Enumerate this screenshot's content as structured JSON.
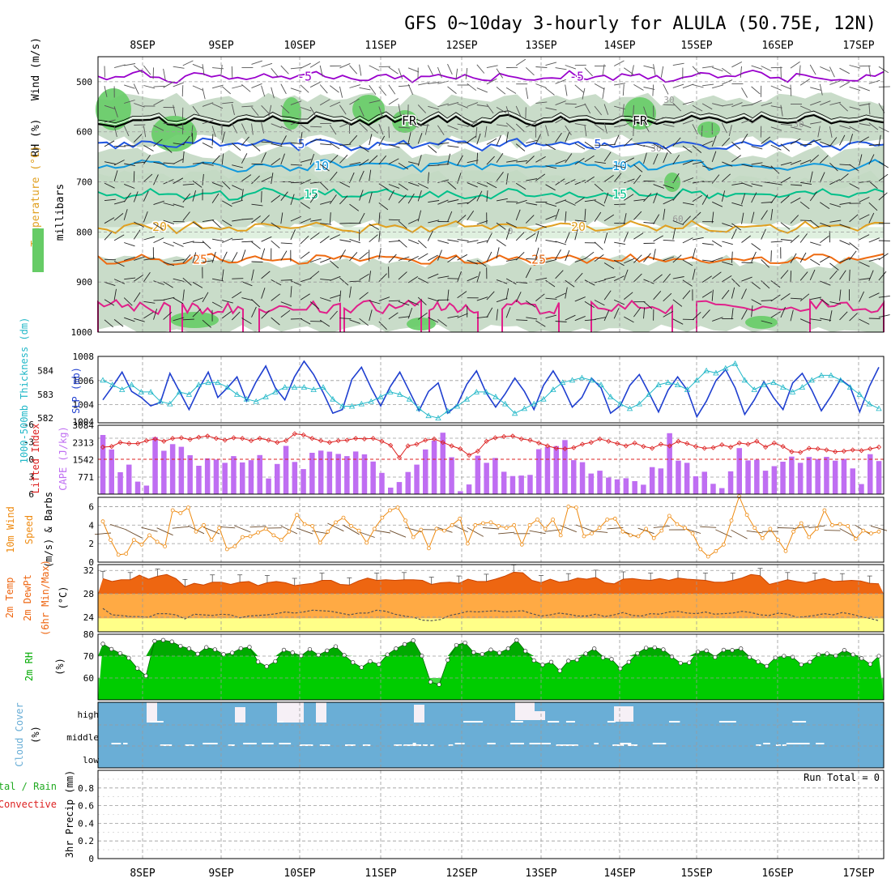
{
  "title": "GFS 0~10day 3-hourly for ALULA (50.75E, 12N)",
  "dates": [
    "8SEP",
    "9SEP",
    "10SEP",
    "11SEP",
    "12SEP",
    "13SEP",
    "14SEP",
    "15SEP",
    "16SEP",
    "17SEP"
  ],
  "colors": {
    "rh_light": "#dff0df",
    "rh_mid": "#c0d6c0",
    "rh_green": "#66cc66",
    "t_purple": "#9900cc",
    "t_black": "#000000",
    "t_blue": "#1f55e0",
    "t_sky": "#1199dd",
    "t_teal": "#00c08a",
    "t_gold": "#e0a020",
    "t_orange": "#ee6a10",
    "t_magenta": "#e0208a",
    "slp": "#1f3fd0",
    "thick": "#22b8c8",
    "cape": "#bf6ef2",
    "li": "#dd2222",
    "wind": "#ee8a10",
    "temp": "#ee6611",
    "temp_mid": "#ffaa44",
    "temp_low": "#ffff88",
    "rh2": "#00cc00",
    "rh2_dark": "#00aa00",
    "cloud": "#6aaed6",
    "precip_label": "#22aa22"
  },
  "chart_data": [
    {
      "type": "heatmap",
      "name": "upper-air cross section",
      "ylabel": "millibars",
      "y_ticks": [
        "500",
        "600",
        "700",
        "800",
        "900",
        "1000"
      ],
      "ylim": [
        450,
        1000
      ],
      "side_labels": {
        "wind": "Wind (m/s)",
        "temperature": "Temperature (°C)",
        "rh": "RH (%)"
      },
      "isotherms": [
        {
          "value": -5,
          "level": 490,
          "label": "-5"
        },
        {
          "value": 0,
          "level": 578,
          "label": "FR"
        },
        {
          "value": 5,
          "level": 625,
          "label": "5"
        },
        {
          "value": 10,
          "level": 668,
          "label": "10"
        },
        {
          "value": 15,
          "level": 725,
          "label": "15"
        },
        {
          "value": 20,
          "level": 790,
          "label": "20"
        },
        {
          "value": 25,
          "level": 855,
          "label": "25"
        }
      ],
      "rh_labels": [
        "30",
        "60",
        "0"
      ]
    },
    {
      "type": "line",
      "name": "slp-thickness",
      "left_label": "1000-500mb Thickness (dm)",
      "right_label": "SLP (mb)",
      "left_ticks": [
        "584",
        "583",
        "582"
      ],
      "right_ticks": [
        "1008",
        "1006",
        "1004",
        "1004"
      ],
      "slp_range": [
        1002.5,
        1008
      ],
      "slp": [
        1004.4,
        1005.5,
        1006.7,
        1005.1,
        1004.6,
        1003.9,
        1004.2,
        1006.6,
        1005.1,
        1003.6,
        1005.3,
        1006.7,
        1004.6,
        1005.4,
        1006.3,
        1004.3,
        1005.9,
        1007.2,
        1005.4,
        1004.4,
        1006.3,
        1007.6,
        1006.5,
        1005.0,
        1003.3,
        1003.6,
        1006.1,
        1007.1,
        1005.4,
        1003.9,
        1005.5,
        1006.7,
        1005.1,
        1003.5,
        1005.1,
        1005.8,
        1003.3,
        1004.0,
        1005.7,
        1006.8,
        1005.0,
        1003.8,
        1004.9,
        1006.2,
        1005.1,
        1003.6,
        1005.6,
        1006.8,
        1005.5,
        1003.8,
        1004.6,
        1006.2,
        1005.4,
        1003.3,
        1003.9,
        1005.6,
        1006.5,
        1005.0,
        1003.4,
        1005.2,
        1006.3,
        1005.2,
        1003.0,
        1004.3,
        1006.0,
        1006.9,
        1005.4,
        1003.2,
        1004.4,
        1005.9,
        1004.6,
        1003.6,
        1005.8,
        1006.6,
        1005.2,
        1003.5,
        1004.7,
        1006.1,
        1005.5,
        1003.4,
        1005.5,
        1007.1
      ],
      "thick_range": [
        581.8,
        584.6
      ],
      "thickness": [
        583.6,
        583.4,
        583.2,
        583.4,
        583.1,
        583.1,
        582.7,
        582.6,
        583.1,
        583.0,
        583.4,
        583.5,
        583.5,
        583.3,
        583.0,
        582.8,
        582.7,
        582.9,
        583.1,
        583.3,
        583.3,
        583.3,
        583.2,
        583.3,
        582.8,
        582.5,
        582.5,
        582.6,
        582.7,
        582.9,
        583.1,
        583.0,
        582.8,
        582.4,
        582.1,
        582.0,
        582.3,
        582.5,
        582.8,
        583.1,
        583.1,
        582.9,
        582.6,
        582.2,
        582.4,
        582.6,
        582.8,
        583.2,
        583.5,
        583.6,
        583.7,
        583.6,
        583.4,
        582.9,
        582.6,
        582.4,
        582.6,
        583.0,
        583.4,
        583.5,
        583.4,
        583.2,
        583.6,
        584.0,
        583.9,
        584.1,
        584.3,
        583.6,
        583.2,
        583.4,
        583.5,
        583.3,
        583.1,
        583.3,
        583.6,
        583.8,
        583.8,
        583.6,
        583.3,
        583.0,
        582.6,
        582.4
      ]
    },
    {
      "type": "bar",
      "name": "cape-lifted-index",
      "left_label": "Lifted Index",
      "right_label": "CAPE (J/kg)",
      "left_ticks": [
        "-6",
        "-3",
        "0",
        "3",
        "6"
      ],
      "right_ticks": [
        "3084",
        "2313",
        "1542",
        "771"
      ],
      "cape_max": 3084,
      "cape": [
        2650,
        2000,
        980,
        1320,
        560,
        380,
        2550,
        1940,
        2240,
        2120,
        1740,
        1270,
        1600,
        1550,
        1400,
        1700,
        1420,
        1520,
        1750,
        700,
        1350,
        2160,
        1440,
        1120,
        1850,
        1950,
        1900,
        1800,
        1700,
        1910,
        1780,
        1460,
        950,
        290,
        540,
        990,
        1320,
        2000,
        2400,
        2750,
        1650,
        130,
        430,
        1720,
        1400,
        1620,
        1000,
        810,
        830,
        860,
        2010,
        2110,
        2150,
        2420,
        1520,
        1430,
        920,
        1050,
        740,
        660,
        710,
        580,
        420,
        1210,
        1150,
        2730,
        1500,
        1400,
        800,
        1000,
        460,
        270,
        1020,
        2060,
        1510,
        1540,
        1050,
        1250,
        1450,
        1680,
        1400,
        1660,
        1570,
        1670,
        1500,
        1580,
        1150,
        450,
        1790,
        1480
      ],
      "li": [
        -2.1,
        -2.2,
        -2.9,
        -2.7,
        -2.7,
        -3.2,
        -3.5,
        -3.1,
        -3.6,
        -3.7,
        -3.4,
        -3.8,
        -4.0,
        -3.6,
        -3.3,
        -3.7,
        -3.6,
        -3.2,
        -3.6,
        -3.3,
        -2.9,
        -3.2,
        -4.4,
        -4.2,
        -3.6,
        -3.2,
        -2.9,
        -3.2,
        -3.3,
        -3.6,
        -3.5,
        -3.6,
        -3.1,
        -2.4,
        -0.3,
        -2.3,
        -2.6,
        -3.3,
        -3.5,
        -2.9,
        -2.3,
        -1.8,
        -0.7,
        -1.4,
        -3.1,
        -3.7,
        -3.9,
        -4.0,
        -3.5,
        -3.3,
        -2.8,
        -2.3,
        -1.9,
        -1.8,
        -2.0,
        -2.6,
        -2.9,
        -3.5,
        -3.1,
        -2.7,
        -2.3,
        -2.8,
        -2.2,
        -1.9,
        -2.6,
        -2.3,
        -3.1,
        -2.7,
        -2.2,
        -1.9,
        -2.0,
        -2.5,
        -2.1,
        -2.8,
        -2.6,
        -3.1,
        -2.1,
        -2.8,
        -2.2,
        -1.3,
        -1.2,
        -1.9,
        -1.8,
        -1.6,
        -1.3,
        -1.4,
        -1.6,
        -1.5,
        -1.8,
        -2.1
      ]
    },
    {
      "type": "line",
      "name": "10m-wind",
      "left_label": "10m Wind",
      "left_label2": "Speed",
      "left_label3": "(m/s) & Barbs",
      "y_ticks": [
        "6",
        "4",
        "2",
        "0"
      ],
      "ylim": [
        0,
        7
      ],
      "speed": [
        4.4,
        2.4,
        0.8,
        0.9,
        2.4,
        1.9,
        2.9,
        2.2,
        1.7,
        5.6,
        5.3,
        5.9,
        3.3,
        4.0,
        2.4,
        3.7,
        1.4,
        1.7,
        2.7,
        2.8,
        3.2,
        3.6,
        2.9,
        2.4,
        3.3,
        5.1,
        4.1,
        3.9,
        2.1,
        3.3,
        4.3,
        4.8,
        3.9,
        3.4,
        2.1,
        3.6,
        4.8,
        5.6,
        5.9,
        4.5,
        2.7,
        3.5,
        1.5,
        3.6,
        3.4,
        4.0,
        4.7,
        2.0,
        4.0,
        4.2,
        4.3,
        3.9,
        3.7,
        4.0,
        1.9,
        4.0,
        4.6,
        3.6,
        4.6,
        2.9,
        6.0,
        5.9,
        2.8,
        3.1,
        3.7,
        4.6,
        4.7,
        3.3,
        2.9,
        2.8,
        3.6,
        2.6,
        3.4,
        5.0,
        4.1,
        3.7,
        3.1,
        1.4,
        0.6,
        1.2,
        1.9,
        4.5,
        7.1,
        5.1,
        3.7,
        2.6,
        3.6,
        2.4,
        1.2,
        3.3,
        4.2,
        2.7,
        3.6,
        5.6,
        4.0,
        4.1,
        3.9,
        2.5,
        3.4,
        3.1,
        3.3
      ]
    },
    {
      "type": "area",
      "name": "2m-temp",
      "left_label": "2m Temp",
      "left_label2": "2m DewPt",
      "left_label3": "(6hr Min/Max)",
      "unit": "(°C)",
      "y_ticks": [
        "32",
        "28",
        "24"
      ],
      "ylim": [
        21.5,
        33
      ],
      "temp": [
        30.6,
        30.1,
        30.4,
        30.4,
        31.2,
        30.5,
        31.0,
        31.3,
        30.6,
        29.2,
        29.8,
        29.5,
        30.0,
        30.0,
        29.6,
        30.0,
        30.1,
        29.4,
        29.9,
        30.1,
        29.9,
        29.4,
        29.6,
        29.8,
        30.3,
        30.3,
        29.6,
        29.5,
        30.2,
        30.7,
        30.3,
        30.4,
        30.3,
        30.4,
        30.4,
        30.3,
        29.6,
        29.9,
        30.0,
        29.8,
        30.5,
        30.1,
        30.1,
        30.5,
        31.0,
        31.7,
        31.6,
        30.3,
        29.9,
        30.5,
        30.0,
        30.2,
        30.7,
        30.5,
        30.8,
        29.9,
        29.7,
        30.5,
        30.6,
        30.4,
        30.3,
        30.6,
        30.3,
        30.7,
        30.5,
        30.4,
        30.3,
        30.0,
        30.0,
        30.3,
        30.7,
        31.3,
        31.1,
        29.6,
        30.0,
        30.4,
        30.1,
        29.9,
        30.3,
        30.6,
        30.1,
        30.2,
        30.3,
        30.2,
        29.8,
        29.7
      ],
      "dewpt": [
        25.5,
        24.4,
        24.3,
        24.1,
        24.1,
        24.0,
        24.6,
        24.6,
        24.4,
        23.7,
        24.5,
        24.4,
        24.3,
        24.5,
        24.4,
        23.9,
        24.2,
        24.3,
        24.4,
        24.6,
        24.9,
        24.7,
        24.9,
        25.2,
        25.1,
        25.0,
        24.7,
        24.4,
        24.7,
        24.7,
        25.2,
        25.0,
        24.5,
        24.2,
        24.0,
        23.5,
        23.4,
        23.6,
        24.3,
        24.6,
        25.0,
        24.9,
        25.0,
        25.1,
        24.9,
        25.0,
        25.1,
        24.6,
        24.2,
        24.4,
        24.7,
        24.5,
        24.2,
        24.2,
        24.5,
        24.1,
        24.4,
        24.8,
        24.3,
        24.2,
        24.6,
        24.5,
        24.9,
        25.0,
        24.7,
        24.6,
        24.9,
        24.5,
        24.6,
        24.7,
        25.0,
        24.8,
        24.4,
        24.3,
        24.7,
        24.5,
        24.0,
        24.1,
        24.3,
        24.6,
        24.4,
        24.8,
        24.5,
        24.1,
        23.8,
        23.4
      ]
    },
    {
      "type": "area",
      "name": "2m-rh",
      "left_label": "2m RH",
      "unit": "(%)",
      "y_ticks": [
        "80",
        "70",
        "60"
      ],
      "ylim": [
        50,
        80
      ],
      "rh": [
        75.6,
        73.2,
        71.3,
        69.1,
        64.4,
        61.0,
        76.9,
        77.3,
        76.6,
        74.6,
        73.4,
        71.0,
        74.0,
        73.0,
        70.8,
        71.5,
        73.5,
        74.1,
        67.4,
        65.3,
        67.6,
        72.8,
        71.6,
        70.2,
        73.1,
        70.5,
        72.5,
        74.4,
        70.4,
        67.1,
        64.8,
        67.6,
        66.2,
        70.7,
        73.4,
        75.4,
        77.1,
        70.1,
        58.2,
        57.0,
        68.2,
        75.0,
        76.1,
        71.7,
        70.9,
        72.9,
        71.5,
        73.4,
        77.3,
        72.3,
        68.0,
        66.0,
        67.3,
        63.3,
        67.8,
        68.3,
        71.1,
        73.4,
        69.3,
        68.6,
        64.3,
        67.3,
        71.3,
        73.7,
        73.9,
        73.0,
        69.7,
        66.8,
        67.0,
        72.0,
        72.5,
        69.5,
        72.8,
        72.7,
        73.4,
        69.5,
        67.4,
        65.4,
        69.3,
        70.0,
        69.6,
        66.1,
        67.3,
        70.7,
        71.1,
        70.2,
        72.7,
        70.7,
        69.0,
        66.3,
        70.0
      ]
    },
    {
      "type": "heatmap",
      "name": "cloud-cover",
      "left_label": "Cloud Cover",
      "unit": "(%)",
      "levels": [
        "high",
        "middle",
        "low"
      ]
    },
    {
      "type": "bar",
      "name": "precip",
      "left_label": "Total / Rain",
      "left_label2": "Convective",
      "left_label3": "3hr Precip (mm)",
      "y_ticks": [
        "0.8",
        "0.6",
        "0.4",
        "0.2",
        "0"
      ],
      "ylim": [
        0,
        1
      ],
      "run_total": "Run Total = 0",
      "values": []
    }
  ]
}
